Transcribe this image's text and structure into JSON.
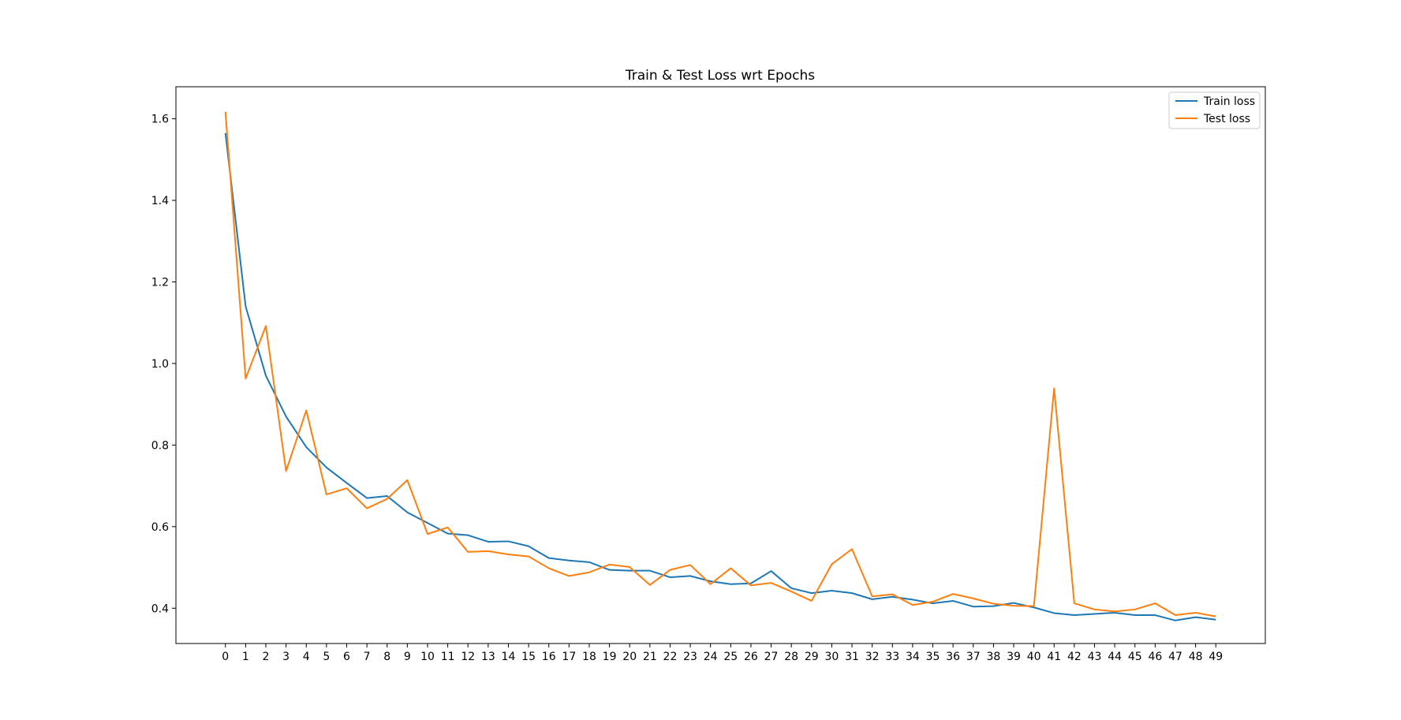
{
  "chart_data": {
    "type": "line",
    "title": "Train & Test Loss wrt Epochs",
    "xlabel": "",
    "ylabel": "",
    "x": [
      0,
      1,
      2,
      3,
      4,
      5,
      6,
      7,
      8,
      9,
      10,
      11,
      12,
      13,
      14,
      15,
      16,
      17,
      18,
      19,
      20,
      21,
      22,
      23,
      24,
      25,
      26,
      27,
      28,
      29,
      30,
      31,
      32,
      33,
      34,
      35,
      36,
      37,
      38,
      39,
      40,
      41,
      42,
      43,
      44,
      45,
      46,
      47,
      48,
      49
    ],
    "xlim": [
      -2.45,
      51.45
    ],
    "ylim": [
      0.3135,
      1.6785
    ],
    "yticks": [
      0.4,
      0.6,
      0.8,
      1.0,
      1.2,
      1.4,
      1.6
    ],
    "ytick_labels": [
      "0.4",
      "0.6",
      "0.8",
      "1.0",
      "1.2",
      "1.4",
      "1.6"
    ],
    "grid": false,
    "legend_position": "top-right",
    "series": [
      {
        "name": "Train loss",
        "color": "#1f77b4",
        "values": [
          1.565,
          1.14,
          0.97,
          0.87,
          0.795,
          0.745,
          0.707,
          0.67,
          0.675,
          0.635,
          0.609,
          0.583,
          0.579,
          0.563,
          0.564,
          0.552,
          0.523,
          0.517,
          0.513,
          0.494,
          0.492,
          0.492,
          0.476,
          0.479,
          0.466,
          0.459,
          0.461,
          0.491,
          0.449,
          0.437,
          0.443,
          0.437,
          0.422,
          0.428,
          0.421,
          0.412,
          0.418,
          0.404,
          0.405,
          0.413,
          0.402,
          0.388,
          0.383,
          0.386,
          0.389,
          0.383,
          0.383,
          0.37,
          0.378,
          0.372
        ]
      },
      {
        "name": "Test loss",
        "color": "#ff7f0e",
        "values": [
          1.617,
          0.963,
          1.092,
          0.736,
          0.885,
          0.679,
          0.694,
          0.645,
          0.668,
          0.714,
          0.582,
          0.598,
          0.538,
          0.54,
          0.532,
          0.527,
          0.498,
          0.479,
          0.488,
          0.507,
          0.501,
          0.457,
          0.494,
          0.506,
          0.459,
          0.498,
          0.456,
          0.462,
          0.441,
          0.418,
          0.508,
          0.545,
          0.429,
          0.434,
          0.408,
          0.416,
          0.435,
          0.424,
          0.411,
          0.406,
          0.405,
          0.939,
          0.412,
          0.397,
          0.392,
          0.397,
          0.412,
          0.383,
          0.389,
          0.38
        ]
      }
    ]
  }
}
